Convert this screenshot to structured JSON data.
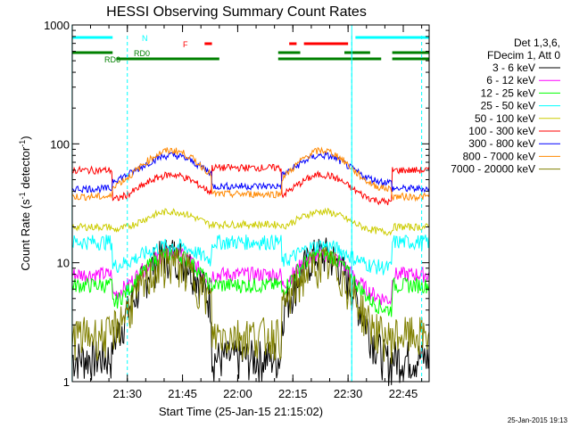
{
  "chart_data": {
    "type": "line",
    "title": "HESSI Observing Summary Count Rates",
    "xlabel": "Start Time (25-Jan-15 21:15:02)",
    "ylabel": "Count Rate (s",
    "ylabel_sup1": "-1",
    "ylabel_mid": " detector",
    "ylabel_sup2": "-1",
    "ylabel_end": ")",
    "y_scale": "log",
    "ylim": [
      1,
      1000
    ],
    "xlim": [
      "21:15:02",
      "22:52:02"
    ],
    "x_ticks": [
      "21:30",
      "21:45",
      "22:00",
      "22:15",
      "22:30",
      "22:45"
    ],
    "y_ticks": [
      "1",
      "10",
      "100",
      "1000"
    ],
    "grid": false,
    "legend_title": [
      "Det 1,3,6,",
      "FDecim 1, Att 0"
    ],
    "date_stamp": "25-Jan-2015 19:13",
    "series": [
      {
        "name": "3 - 6 keV",
        "color": "#000000",
        "shape": "low",
        "base": 1.3,
        "peak": 12,
        "level": 1.6
      },
      {
        "name": "6 - 12 keV",
        "color": "#ff00ff",
        "shape": "mid",
        "base": 8,
        "peak": 12,
        "level": 8
      },
      {
        "name": "12 - 25 keV",
        "color": "#00ff00",
        "shape": "mid",
        "base": 6.5,
        "peak": 12,
        "level": 6.5
      },
      {
        "name": "25 - 50 keV",
        "color": "#00ffff",
        "shape": "mid",
        "base": 15,
        "peak": 14,
        "level": 15
      },
      {
        "name": "50 - 100 keV",
        "color": "#cccc00",
        "shape": "arc",
        "base": 18,
        "peak": 27,
        "level": 20
      },
      {
        "name": "100 - 300 keV",
        "color": "#ff0000",
        "shape": "arc",
        "base": 32,
        "peak": 55,
        "level": 60
      },
      {
        "name": "300 - 800 keV",
        "color": "#0000ff",
        "shape": "arc",
        "base": 47,
        "peak": 80,
        "level": 42
      },
      {
        "name": "800 - 7000 keV",
        "color": "#ff8800",
        "shape": "arc",
        "base": 41,
        "peak": 88,
        "level": 36
      },
      {
        "name": "7000 - 20000 keV",
        "color": "#808000",
        "shape": "low",
        "base": 2.2,
        "peak": 10,
        "level": 2.5
      }
    ],
    "status_bars": [
      {
        "label": "N",
        "color": "#00ffff",
        "segments": [
          [
            "21:15",
            "21:26"
          ],
          [
            "22:32",
            "22:52"
          ]
        ]
      },
      {
        "label": "F",
        "color": "#ff0000",
        "segments": [
          [
            "21:51",
            "21:53"
          ],
          [
            "22:14",
            "22:16"
          ],
          [
            "22:18",
            "22:30"
          ]
        ]
      },
      {
        "label": "RD0",
        "color": "#008000",
        "segments": [
          [
            "21:15",
            "21:26"
          ],
          [
            "22:11",
            "22:17"
          ],
          [
            "22:29",
            "22:36"
          ],
          [
            "22:42",
            "22:52"
          ]
        ]
      },
      {
        "label": "RD6",
        "color": "#008000",
        "segments": [
          [
            "21:27",
            "21:55"
          ],
          [
            "22:11",
            "22:39"
          ],
          [
            "22:42",
            "22:52"
          ]
        ]
      }
    ],
    "saa_lines": [
      "21:30",
      "22:31",
      "22:50"
    ],
    "night_markers": [
      "21:15",
      "22:31"
    ]
  }
}
